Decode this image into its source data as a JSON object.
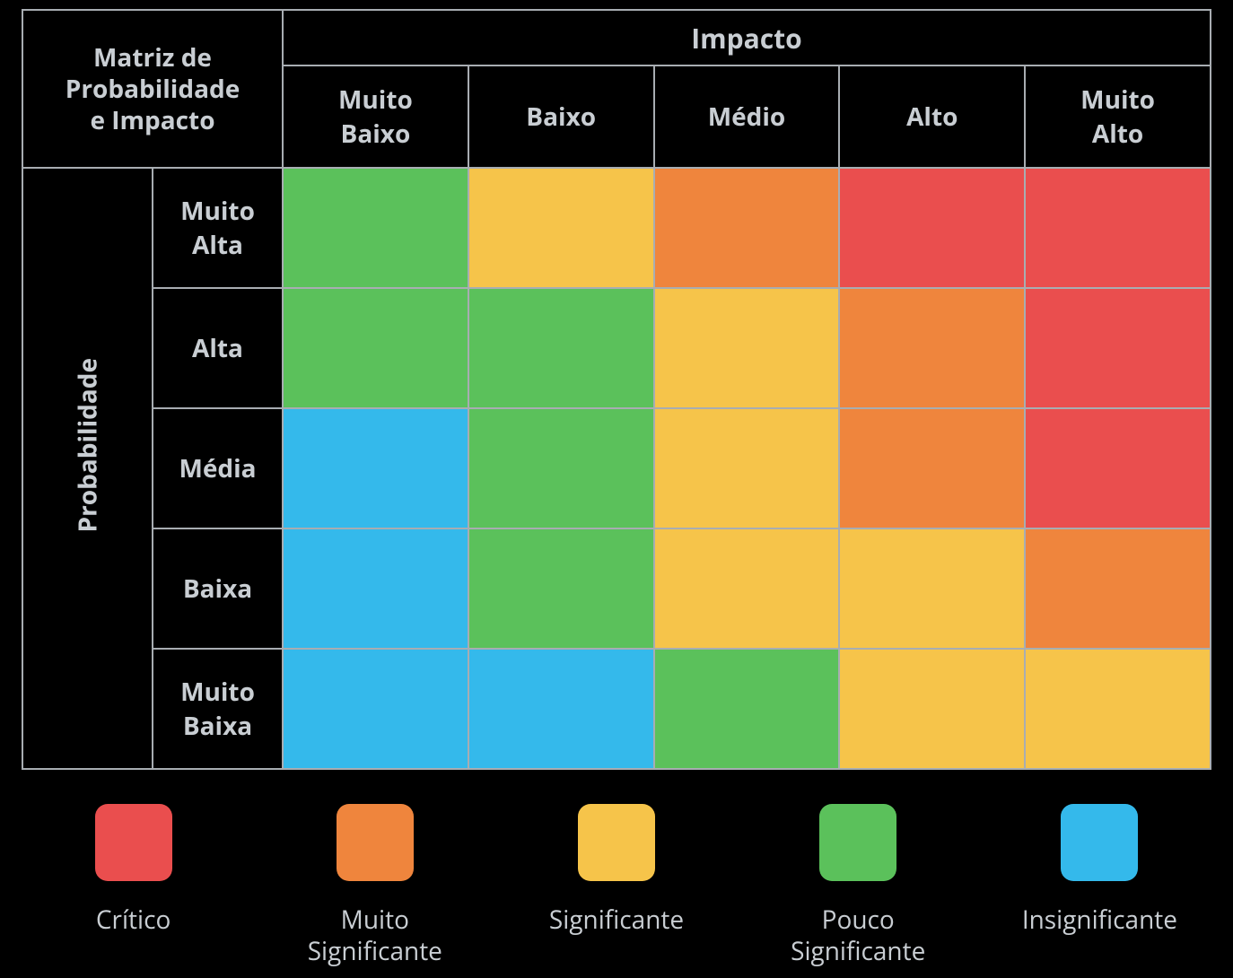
{
  "matrix": {
    "title": "Matriz de Probabilidade e Impacto",
    "impact_header": "Impacto",
    "probability_header": "Probabilidade",
    "impact_levels": [
      "Muito Baixo",
      "Baixo",
      "Médio",
      "Alto",
      "Muito Alto"
    ],
    "probability_levels": [
      "Muito Alta",
      "Alta",
      "Média",
      "Baixa",
      "Muito Baixa"
    ],
    "cell_colors": [
      [
        "#5bc15b",
        "#f6c44a",
        "#ef853d",
        "#ea4e4e",
        "#ea4e4e"
      ],
      [
        "#5bc15b",
        "#5bc15b",
        "#f6c44a",
        "#ef853d",
        "#ea4e4e"
      ],
      [
        "#34b9eb",
        "#5bc15b",
        "#f6c44a",
        "#ef853d",
        "#ea4e4e"
      ],
      [
        "#34b9eb",
        "#5bc15b",
        "#f6c44a",
        "#f6c44a",
        "#ef853d"
      ],
      [
        "#34b9eb",
        "#34b9eb",
        "#5bc15b",
        "#f6c44a",
        "#f6c44a"
      ]
    ],
    "border_color": "#a8adb2",
    "text_color": "#c9ced3",
    "background_color": "#000000",
    "header_fontsize": 28,
    "header_fontweight": 700
  },
  "legend": {
    "items": [
      {
        "label": "Crítico",
        "color": "#ea4e4e"
      },
      {
        "label": "Muito Significante",
        "color": "#ef853d"
      },
      {
        "label": "Significante",
        "color": "#f6c44a"
      },
      {
        "label": "Pouco Significante",
        "color": "#5bc15b"
      },
      {
        "label": "Insignificante",
        "color": "#34b9eb"
      }
    ],
    "swatch_radius": 14,
    "swatch_size": 86,
    "label_fontsize": 28,
    "label_color": "#c9ced3"
  }
}
